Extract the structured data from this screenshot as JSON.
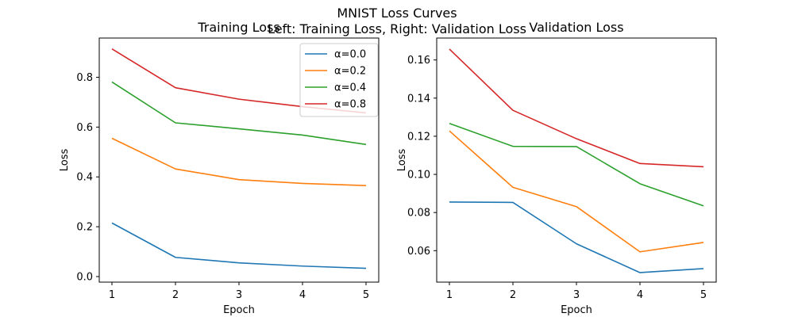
{
  "figure": {
    "suptitle_line1": "MNIST Loss Curves",
    "suptitle_line2": "Left: Training Loss, Right: Validation Loss"
  },
  "colors": {
    "alpha_0_0": "#1f77b4",
    "alpha_0_2": "#ff7f0e",
    "alpha_0_4": "#2ca02c",
    "alpha_0_8": "#d62728"
  },
  "chart_data": [
    {
      "type": "line",
      "title": "Training Loss",
      "xlabel": "Epoch",
      "ylabel": "Loss",
      "x": [
        1,
        2,
        3,
        4,
        5
      ],
      "xlim": [
        0.8,
        5.2
      ],
      "ylim": [
        -0.0224,
        0.9574
      ],
      "xticks": [
        1,
        2,
        3,
        4,
        5
      ],
      "yticks": [
        0.0,
        0.2,
        0.4,
        0.6,
        0.8
      ],
      "ytick_labels": [
        "0.0",
        "0.2",
        "0.4",
        "0.6",
        "0.8"
      ],
      "grid": false,
      "legend": "top-right",
      "series": [
        {
          "name": "α=0.0",
          "color": "#1f77b4",
          "values": [
            0.215,
            0.077,
            0.055,
            0.042,
            0.033
          ]
        },
        {
          "name": "α=0.2",
          "color": "#ff7f0e",
          "values": [
            0.555,
            0.432,
            0.389,
            0.374,
            0.365
          ]
        },
        {
          "name": "α=0.4",
          "color": "#2ca02c",
          "values": [
            0.781,
            0.617,
            0.593,
            0.568,
            0.53
          ]
        },
        {
          "name": "α=0.8",
          "color": "#d62728",
          "values": [
            0.914,
            0.758,
            0.712,
            0.682,
            0.657
          ]
        }
      ]
    },
    {
      "type": "line",
      "title": "Validation Loss",
      "xlabel": "Epoch",
      "ylabel": "Loss",
      "x": [
        1,
        2,
        3,
        4,
        5
      ],
      "xlim": [
        0.8,
        5.2
      ],
      "ylim": [
        0.0435,
        0.1715
      ],
      "xticks": [
        1,
        2,
        3,
        4,
        5
      ],
      "yticks": [
        0.06,
        0.08,
        0.1,
        0.12,
        0.14,
        0.16
      ],
      "ytick_labels": [
        "0.06",
        "0.08",
        "0.10",
        "0.12",
        "0.14",
        "0.16"
      ],
      "grid": false,
      "series": [
        {
          "name": "α=0.0",
          "color": "#1f77b4",
          "values": [
            0.0855,
            0.0853,
            0.0636,
            0.0485,
            0.0506
          ]
        },
        {
          "name": "α=0.2",
          "color": "#ff7f0e",
          "values": [
            0.1228,
            0.0932,
            0.0831,
            0.0594,
            0.0643
          ]
        },
        {
          "name": "α=0.4",
          "color": "#2ca02c",
          "values": [
            0.1267,
            0.1147,
            0.1146,
            0.0951,
            0.0835
          ]
        },
        {
          "name": "α=0.8",
          "color": "#d62728",
          "values": [
            0.1657,
            0.1336,
            0.1187,
            0.1057,
            0.104
          ]
        }
      ]
    }
  ]
}
